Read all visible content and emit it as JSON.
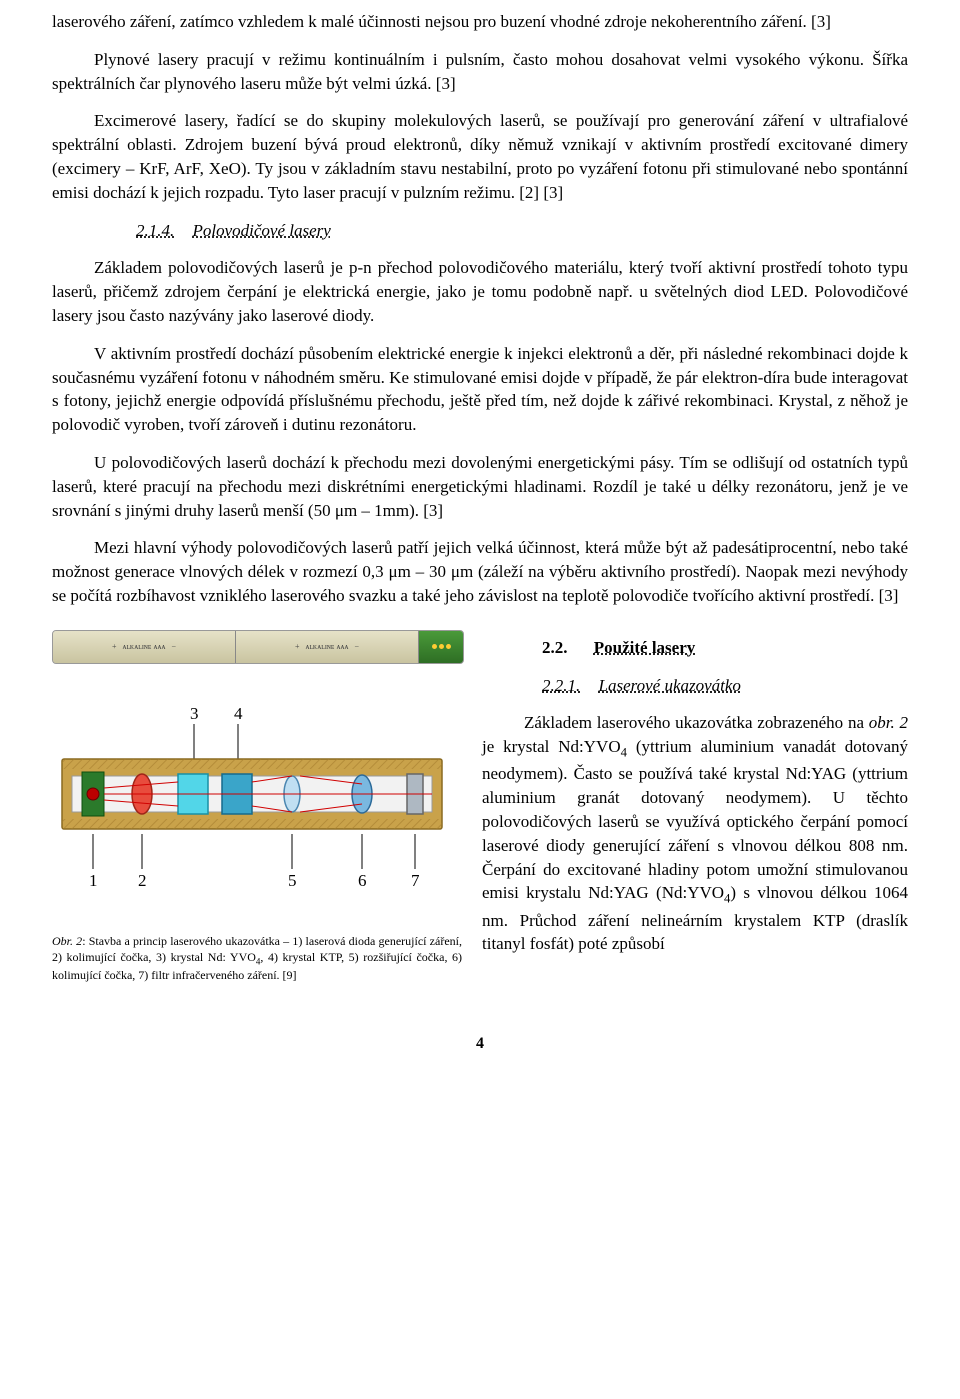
{
  "p1": "laserového záření, zatímco vzhledem k malé účinnosti nejsou pro buzení vhodné zdroje nekoherentního záření. [3]",
  "p2": "Plynové lasery pracují v režimu kontinuálním i pulsním, často mohou dosahovat velmi vysokého výkonu. Šířka spektrálních čar plynového laseru může být velmi úzká. [3]",
  "p3": "Excimerové lasery, řadící se do skupiny molekulových laserů, se používají pro generování záření v ultrafialové spektrální oblasti. Zdrojem buzení bývá proud elektronů, díky němuž vznikají v aktivním prostředí excitované dimery (excimery – KrF, ArF, XeO). Ty jsou v základním stavu nestabilní, proto po vyzáření fotonu při stimulované nebo spontánní emisi dochází k jejich rozpadu. Tyto laser pracují v pulzním režimu. [2] [3]",
  "h214_num": "2.1.4.",
  "h214_txt": "Polovodičové lasery",
  "p4": "Základem polovodičových laserů je p-n přechod polovodičového materiálu, který tvoří aktivní prostředí tohoto typu laserů, přičemž zdrojem čerpání je elektrická energie, jako je tomu podobně např. u světelných diod LED. Polovodičové lasery jsou často nazývány jako laserové diody.",
  "p5": "V aktivním prostředí dochází působením elektrické energie k injekci elektronů a děr, při následné rekombinaci dojde k současnému vyzáření fotonu v náhodném směru. Ke stimulované emisi dojde v případě, že pár elektron-díra bude interagovat s fotony, jejichž energie odpovídá příslušnému přechodu, ještě před tím, než dojde k zářivé rekombinaci. Krystal, z něhož je polovodič vyroben, tvoří zároveň i dutinu rezonátoru.",
  "p6": "U polovodičových laserů dochází k přechodu mezi dovolenými energetickými pásy. Tím se odlišují od ostatních typů laserů, které pracují na přechodu mezi diskrétními energetickými hladinami. Rozdíl je také u délky rezonátoru, jenž je ve srovnání s jinými druhy laserů menší (50 μm – 1mm). [3]",
  "p7": "Mezi hlavní výhody polovodičových laserů patří jejich velká účinnost, která může být až padesátiprocentní, nebo také možnost generace vlnových délek v rozmezí 0,3 μm – 30 μm (záleží na výběru aktivního prostředí). Naopak mezi nevýhody se počítá rozbíhavost vzniklého laserového svazku a také jeho závislost na teplotě polovodiče tvořícího aktivní prostředí. [3]",
  "h22_num": "2.2.",
  "h22_txt": "Použité lasery",
  "h221_num": "2.2.1.",
  "h221_txt": "Laserové ukazovátko",
  "p8_html": "Základem laserového ukazovátka zobrazeného na <i>obr. 2</i> je krystal Nd:YVO<sub>4</sub> (yttrium aluminium vanadát dotovaný neodymem). Často se používá také krystal Nd:YAG (yttrium aluminium granát dotovaný neodymem). U těchto polovodičových laserů se využívá optického čerpání pomocí laserové diody generující záření s vlnovou délkou 808 nm. Čerpání do excitované hladiny potom umožní stimulovanou emisi krystalu Nd:YAG (Nd:YVO<sub>4</sub>) s vlnovou délkou 1064 nm. Průchod záření nelineárním krystalem KTP (draslík titanyl fosfát) poté způsobí",
  "caption_html": "<i>Obr. 2</i>: Stavba a princip laserového ukazovátka – 1) laserová dioda generující záření, 2) kolimující čočka, 3) krystal Nd: YVO<sub>4</sub>, 4) krystal KTP, 5) rozšiřující čočka, 6) kolimující čočka, 7) filtr infračerveného záření. [9]",
  "page_num": "4",
  "figure": {
    "labels_top": [
      "3",
      "4"
    ],
    "labels_bottom": [
      "1",
      "2",
      "5",
      "6",
      "7"
    ],
    "colors": {
      "tube": "#c9a24a",
      "tube_dark": "#a67e2e",
      "lens1": "#e84c3d",
      "crystal1": "#52d6e8",
      "crystal2": "#3aa5c9",
      "lens2": "#7ab8e0",
      "filter": "#aeb8c2",
      "diode": "#2b7a2b"
    }
  }
}
